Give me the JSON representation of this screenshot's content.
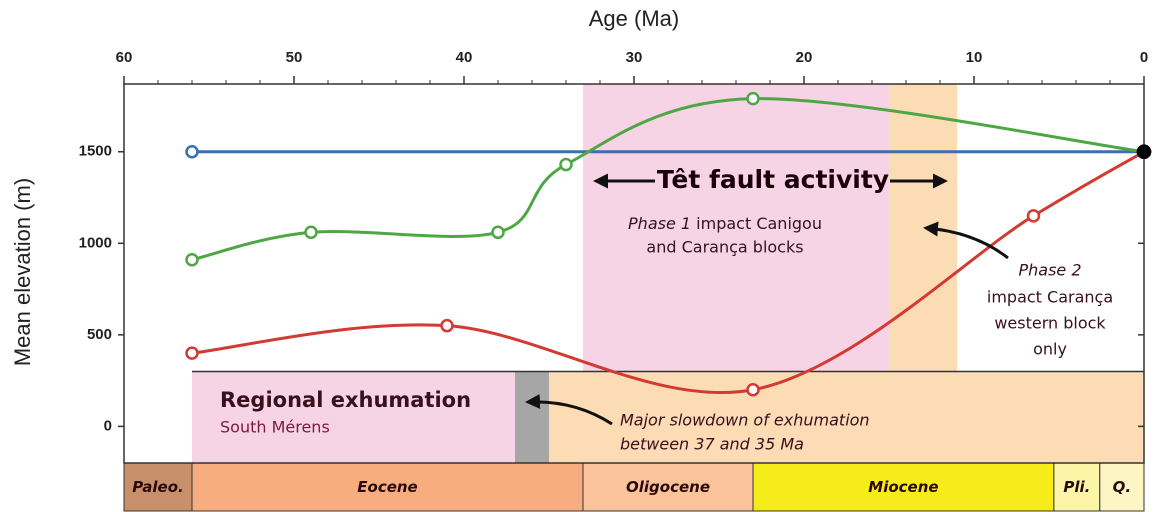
{
  "chart_data": {
    "type": "line",
    "xlabel": "Age (Ma)",
    "ylabel": "Mean elevation (m)",
    "xlim": [
      60,
      0
    ],
    "xticks": [
      60,
      50,
      40,
      30,
      20,
      10,
      0
    ],
    "xminorticks": [
      58,
      56,
      54,
      52,
      48,
      46,
      44,
      42,
      38,
      36,
      34,
      32,
      28,
      26,
      24,
      22,
      18,
      16,
      14,
      12,
      8,
      6,
      4,
      2
    ],
    "ylim": [
      -200,
      1870
    ],
    "yticks": [
      0,
      500,
      1000,
      1500
    ],
    "end_marker_color": "#000000",
    "series": [
      {
        "color": "#3a6fb0",
        "x": [
          56,
          0
        ],
        "values": [
          1500,
          1500
        ]
      },
      {
        "color": "#4ea744",
        "x": [
          56,
          49,
          38,
          34,
          23,
          0
        ],
        "values": [
          910,
          1060,
          1060,
          1430,
          1790,
          1500
        ]
      },
      {
        "color": "#d23a32",
        "x": [
          56,
          41,
          23,
          6.5,
          0
        ],
        "values": [
          400,
          550,
          200,
          1150,
          1500
        ]
      }
    ],
    "shaded_regions": [
      {
        "x": [
          33,
          15
        ],
        "y": [
          300,
          1870
        ],
        "color": "#f7d3e6"
      },
      {
        "x": [
          15,
          11
        ],
        "y": [
          300,
          1870
        ],
        "color": "#fcdcb4"
      },
      {
        "x": [
          56,
          37
        ],
        "y": [
          -200,
          300
        ],
        "color": "#f7d3e6"
      },
      {
        "x": [
          37,
          35
        ],
        "y": [
          -200,
          300
        ],
        "color": "#a6a6a6"
      },
      {
        "x": [
          35,
          0
        ],
        "y": [
          -200,
          300
        ],
        "color": "#fcdcb4"
      }
    ],
    "epochs": [
      {
        "name": "Paleo.",
        "x": [
          60,
          56
        ],
        "color": "#c8906a"
      },
      {
        "name": "Eocene",
        "x": [
          56,
          33
        ],
        "color": "#f7ad80"
      },
      {
        "name": "Oligocene",
        "x": [
          33,
          23
        ],
        "color": "#fbc39a"
      },
      {
        "name": "Miocene",
        "x": [
          23,
          5.3
        ],
        "color": "#f6ec1c"
      },
      {
        "name": "Pli.",
        "x": [
          5.3,
          2.6
        ],
        "color": "#fcf4a6"
      },
      {
        "name": "Q.",
        "x": [
          2.6,
          0
        ],
        "color": "#fdf6c4"
      }
    ],
    "annotations": {
      "fault": "Têt fault activity",
      "phase1": [
        "Phase 1",
        "impact Canigou",
        "and Carança blocks"
      ],
      "phase2": [
        "Phase 2",
        "impact Carança",
        "western block",
        "only"
      ],
      "regional": [
        "Regional exhumation",
        "South Mérens"
      ],
      "slowdown": [
        "Major slowdown of exhumation",
        "between 37 and 35 Ma"
      ]
    }
  }
}
